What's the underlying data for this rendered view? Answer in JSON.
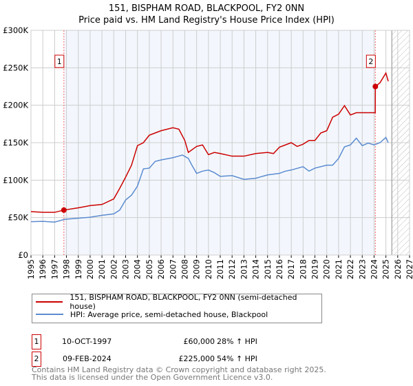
{
  "chart_data": {
    "type": "line",
    "title": "151, BISPHAM ROAD, BLACKPOOL, FY2 0NN",
    "subtitle": "Price paid vs. HM Land Registry's House Price Index (HPI)",
    "xlim": [
      1995,
      2027
    ],
    "ylim": [
      0,
      300000
    ],
    "x_ticks": [
      "1995",
      "1996",
      "1997",
      "1998",
      "1999",
      "2000",
      "2001",
      "2002",
      "2003",
      "2004",
      "2005",
      "2006",
      "2007",
      "2008",
      "2009",
      "2010",
      "2011",
      "2012",
      "2013",
      "2014",
      "2015",
      "2016",
      "2017",
      "2018",
      "2019",
      "2020",
      "2021",
      "2022",
      "2023",
      "2024",
      "2025",
      "2026",
      "2027"
    ],
    "y_ticks": [
      {
        "v": 0,
        "label": "£0"
      },
      {
        "v": 50000,
        "label": "£50K"
      },
      {
        "v": 100000,
        "label": "£100K"
      },
      {
        "v": 150000,
        "label": "£150K"
      },
      {
        "v": 200000,
        "label": "£200K"
      },
      {
        "v": 250000,
        "label": "£250K"
      },
      {
        "v": 300000,
        "label": "£300K"
      }
    ],
    "grid": true,
    "shaded_range": [
      1997.78,
      2024.11
    ],
    "hatched_from": 2025.5,
    "series": [
      {
        "name": "151, BISPHAM ROAD, BLACKPOOL, FY2 0NN (semi-detached house)",
        "color": "#cc0000",
        "x": [
          1995,
          1996,
          1997,
          1997.78,
          1999,
          2000,
          2001,
          2002,
          2002.5,
          2003,
          2003.5,
          2004,
          2004.5,
          2005,
          2005.5,
          2006,
          2007,
          2007.5,
          2008,
          2008.3,
          2009,
          2009.5,
          2010,
          2010.5,
          2011,
          2012,
          2013,
          2014,
          2015,
          2015.5,
          2016,
          2017,
          2017.5,
          2018,
          2018.5,
          2019,
          2019.5,
          2020,
          2020.5,
          2021,
          2021.5,
          2022,
          2022.5,
          2024.1,
          2024.11,
          2024.5,
          2025,
          2025.2
        ],
        "y": [
          58000,
          57000,
          57000,
          60000,
          63000,
          66000,
          67500,
          75000,
          89000,
          104000,
          120000,
          146000,
          150000,
          160000,
          163000,
          166000,
          170000,
          168000,
          153000,
          137000,
          145000,
          147000,
          134000,
          137000,
          135500,
          132000,
          132000,
          135500,
          137000,
          135500,
          144000,
          150000,
          145000,
          148000,
          153000,
          153000,
          163000,
          166000,
          184000,
          188000,
          199500,
          187000,
          190000,
          190000,
          225000,
          230000,
          243000,
          232000
        ]
      },
      {
        "name": "HPI: Average price, semi-detached house, Blackpool",
        "color": "#5b8bd0",
        "x": [
          1995,
          1996,
          1997,
          1997.8,
          1998.5,
          2000,
          2001,
          2002,
          2002.5,
          2003,
          2003.5,
          2004,
          2004.5,
          2005,
          2005.5,
          2006,
          2007,
          2007.8,
          2008.3,
          2008.6,
          2009,
          2009.5,
          2010,
          2010.5,
          2011,
          2012,
          2013,
          2014,
          2015,
          2016,
          2016.5,
          2017,
          2018,
          2018.5,
          2019,
          2020,
          2020.5,
          2021,
          2021.5,
          2022,
          2022.5,
          2023,
          2023.5,
          2024,
          2024.5,
          2025,
          2025.2
        ],
        "y": [
          44500,
          45000,
          44000,
          47500,
          48500,
          50500,
          53000,
          55000,
          60000,
          73500,
          80000,
          92000,
          115000,
          116000,
          125000,
          127000,
          130000,
          133500,
          129000,
          120000,
          109000,
          112000,
          113500,
          110000,
          105000,
          106000,
          101000,
          102500,
          107000,
          109000,
          112000,
          113500,
          118000,
          112000,
          116000,
          120000,
          120000,
          129000,
          144500,
          147000,
          156000,
          146000,
          149500,
          147000,
          150000,
          157000,
          150000
        ]
      }
    ],
    "annotations": [
      {
        "label": "1",
        "x": 1997.78,
        "y": 60000
      },
      {
        "label": "2",
        "x": 2024.11,
        "y": 225000
      }
    ]
  },
  "legend": {
    "red": "151, BISPHAM ROAD, BLACKPOOL, FY2 0NN (semi-detached house)",
    "blue": "HPI: Average price, semi-detached house, Blackpool"
  },
  "transactions": [
    {
      "num": "1",
      "date": "10-OCT-1997",
      "price": "£60,000",
      "hpi": "28% ↑ HPI"
    },
    {
      "num": "2",
      "date": "09-FEB-2024",
      "price": "£225,000",
      "hpi": "54% ↑ HPI"
    }
  ],
  "footer": {
    "line1": "Contains HM Land Registry data © Crown copyright and database right 2025.",
    "line2": "This data is licensed under the Open Government Licence v3.0."
  }
}
